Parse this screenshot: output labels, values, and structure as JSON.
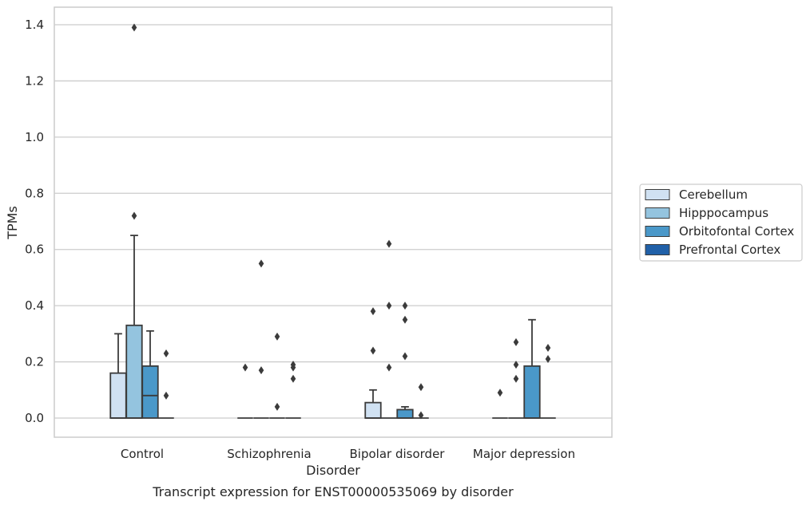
{
  "chart_data": {
    "type": "box",
    "title": "Transcript expression for ENST00000535069 by disorder",
    "xlabel": "Disorder",
    "ylabel": "TPMs",
    "ylim": [
      -0.068,
      1.46
    ],
    "yticks": [
      0.0,
      0.2,
      0.4,
      0.6,
      0.8,
      1.0,
      1.2,
      1.4
    ],
    "ytick_labels": [
      "0.0",
      "0.2",
      "0.4",
      "0.6",
      "0.8",
      "1.0",
      "1.2",
      "1.4"
    ],
    "grid": "horizontal",
    "legend_position": "right",
    "categories": [
      "Control",
      "Schizophrenia",
      "Bipolar disorder",
      "Major depression"
    ],
    "series": [
      {
        "name": "Cerebellum",
        "color": "#d0e1f2",
        "boxes": [
          {
            "category": "Control",
            "q1": 0.0,
            "median": 0.0,
            "q3": 0.16,
            "whisker_low": 0.0,
            "whisker_high": 0.3,
            "outliers": []
          },
          {
            "category": "Schizophrenia",
            "q1": 0.0,
            "median": 0.0,
            "q3": 0.0,
            "whisker_low": 0.0,
            "whisker_high": 0.0,
            "outliers": [
              0.18
            ]
          },
          {
            "category": "Bipolar disorder",
            "q1": 0.0,
            "median": 0.0,
            "q3": 0.055,
            "whisker_low": 0.0,
            "whisker_high": 0.1,
            "outliers": [
              0.38,
              0.24
            ]
          },
          {
            "category": "Major depression",
            "q1": 0.0,
            "median": 0.0,
            "q3": 0.0,
            "whisker_low": 0.0,
            "whisker_high": 0.0,
            "outliers": [
              0.09
            ]
          }
        ]
      },
      {
        "name": "Hipppocampus",
        "color": "#94c4df",
        "boxes": [
          {
            "category": "Control",
            "q1": 0.0,
            "median": 0.0,
            "q3": 0.33,
            "whisker_low": 0.0,
            "whisker_high": 0.65,
            "outliers": [
              1.39,
              0.72
            ]
          },
          {
            "category": "Schizophrenia",
            "q1": 0.0,
            "median": 0.0,
            "q3": 0.0,
            "whisker_low": 0.0,
            "whisker_high": 0.0,
            "outliers": [
              0.55,
              0.17
            ]
          },
          {
            "category": "Bipolar disorder",
            "q1": 0.0,
            "median": 0.0,
            "q3": 0.0,
            "whisker_low": 0.0,
            "whisker_high": 0.0,
            "outliers": [
              0.62,
              0.4,
              0.18
            ]
          },
          {
            "category": "Major depression",
            "q1": 0.0,
            "median": 0.0,
            "q3": 0.0,
            "whisker_low": 0.0,
            "whisker_high": 0.0,
            "outliers": [
              0.27,
              0.19,
              0.14
            ]
          }
        ]
      },
      {
        "name": "Orbitofontal Cortex",
        "color": "#4a98c9",
        "boxes": [
          {
            "category": "Control",
            "q1": 0.0,
            "median": 0.08,
            "q3": 0.185,
            "whisker_low": 0.0,
            "whisker_high": 0.31,
            "outliers": []
          },
          {
            "category": "Schizophrenia",
            "q1": 0.0,
            "median": 0.0,
            "q3": 0.0,
            "whisker_low": 0.0,
            "whisker_high": 0.0,
            "outliers": [
              0.29,
              0.04
            ]
          },
          {
            "category": "Bipolar disorder",
            "q1": 0.0,
            "median": 0.0,
            "q3": 0.03,
            "whisker_low": 0.0,
            "whisker_high": 0.04,
            "outliers": [
              0.4,
              0.35,
              0.22
            ]
          },
          {
            "category": "Major depression",
            "q1": 0.0,
            "median": 0.0,
            "q3": 0.185,
            "whisker_low": 0.0,
            "whisker_high": 0.35,
            "outliers": []
          }
        ]
      },
      {
        "name": "Prefrontal Cortex",
        "color": "#2060a8",
        "boxes": [
          {
            "category": "Control",
            "q1": 0.0,
            "median": 0.0,
            "q3": 0.0,
            "whisker_low": 0.0,
            "whisker_high": 0.0,
            "outliers": [
              0.23,
              0.08
            ]
          },
          {
            "category": "Schizophrenia",
            "q1": 0.0,
            "median": 0.0,
            "q3": 0.0,
            "whisker_low": 0.0,
            "whisker_high": 0.0,
            "outliers": [
              0.19,
              0.18,
              0.14
            ]
          },
          {
            "category": "Bipolar disorder",
            "q1": 0.0,
            "median": 0.0,
            "q3": 0.0,
            "whisker_low": 0.0,
            "whisker_high": 0.0,
            "outliers": [
              0.11,
              0.01
            ]
          },
          {
            "category": "Major depression",
            "q1": 0.0,
            "median": 0.0,
            "q3": 0.0,
            "whisker_low": 0.0,
            "whisker_high": 0.0,
            "outliers": [
              0.25,
              0.21
            ]
          }
        ]
      }
    ],
    "style": {
      "axes_edge_color": "#cccccc",
      "grid_color": "#cccccc",
      "box_line_color": "#3b3b3b",
      "legend_edge_color": "#cccccc"
    }
  }
}
